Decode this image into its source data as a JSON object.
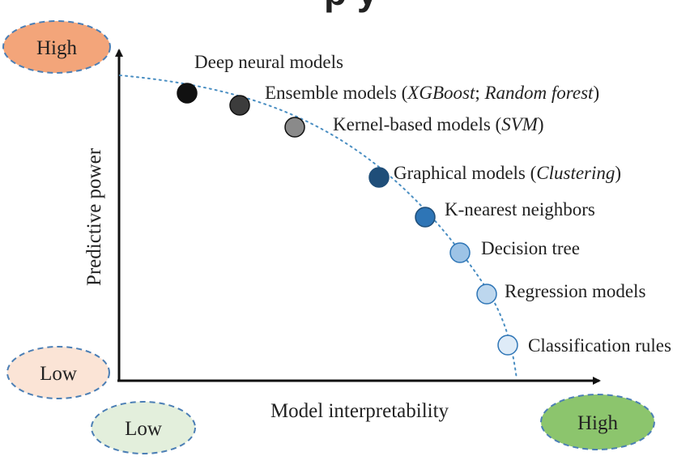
{
  "top_title_fragment": "p       y",
  "colors": {
    "title": "#1a9ad6",
    "axis": "#111111",
    "curve": "#4a8ec2",
    "high_y_fill": "#f3a57a",
    "low_y_fill": "#fbe4d6",
    "low_x_fill": "#e3efdc",
    "high_x_fill": "#8cc56d",
    "ellipse_stroke": "#4c7fb5"
  },
  "axes": {
    "x_label": "Model interpretability",
    "y_label": "Predictive power",
    "y_high": "High",
    "y_low": "Low",
    "x_low": "Low",
    "x_high": "High"
  },
  "models": [
    {
      "label": "Deep neural models",
      "fill": "#111111"
    },
    {
      "label": "Ensemble models (XGBoost; Random forest)",
      "fill": "#3c3c3c"
    },
    {
      "label": "Kernel-based models (SVM)",
      "fill": "#8a8a8a"
    },
    {
      "label": "Graphical models (Clustering)",
      "fill": "#1f4e79"
    },
    {
      "label": "K-nearest neighbors",
      "fill": "#2e75b6"
    },
    {
      "label": "Decision tree",
      "fill": "#9dc3e6"
    },
    {
      "label": "Regression models",
      "fill": "#bdd7ee"
    },
    {
      "label": "Classification rules",
      "fill": "#deebf7"
    }
  ]
}
